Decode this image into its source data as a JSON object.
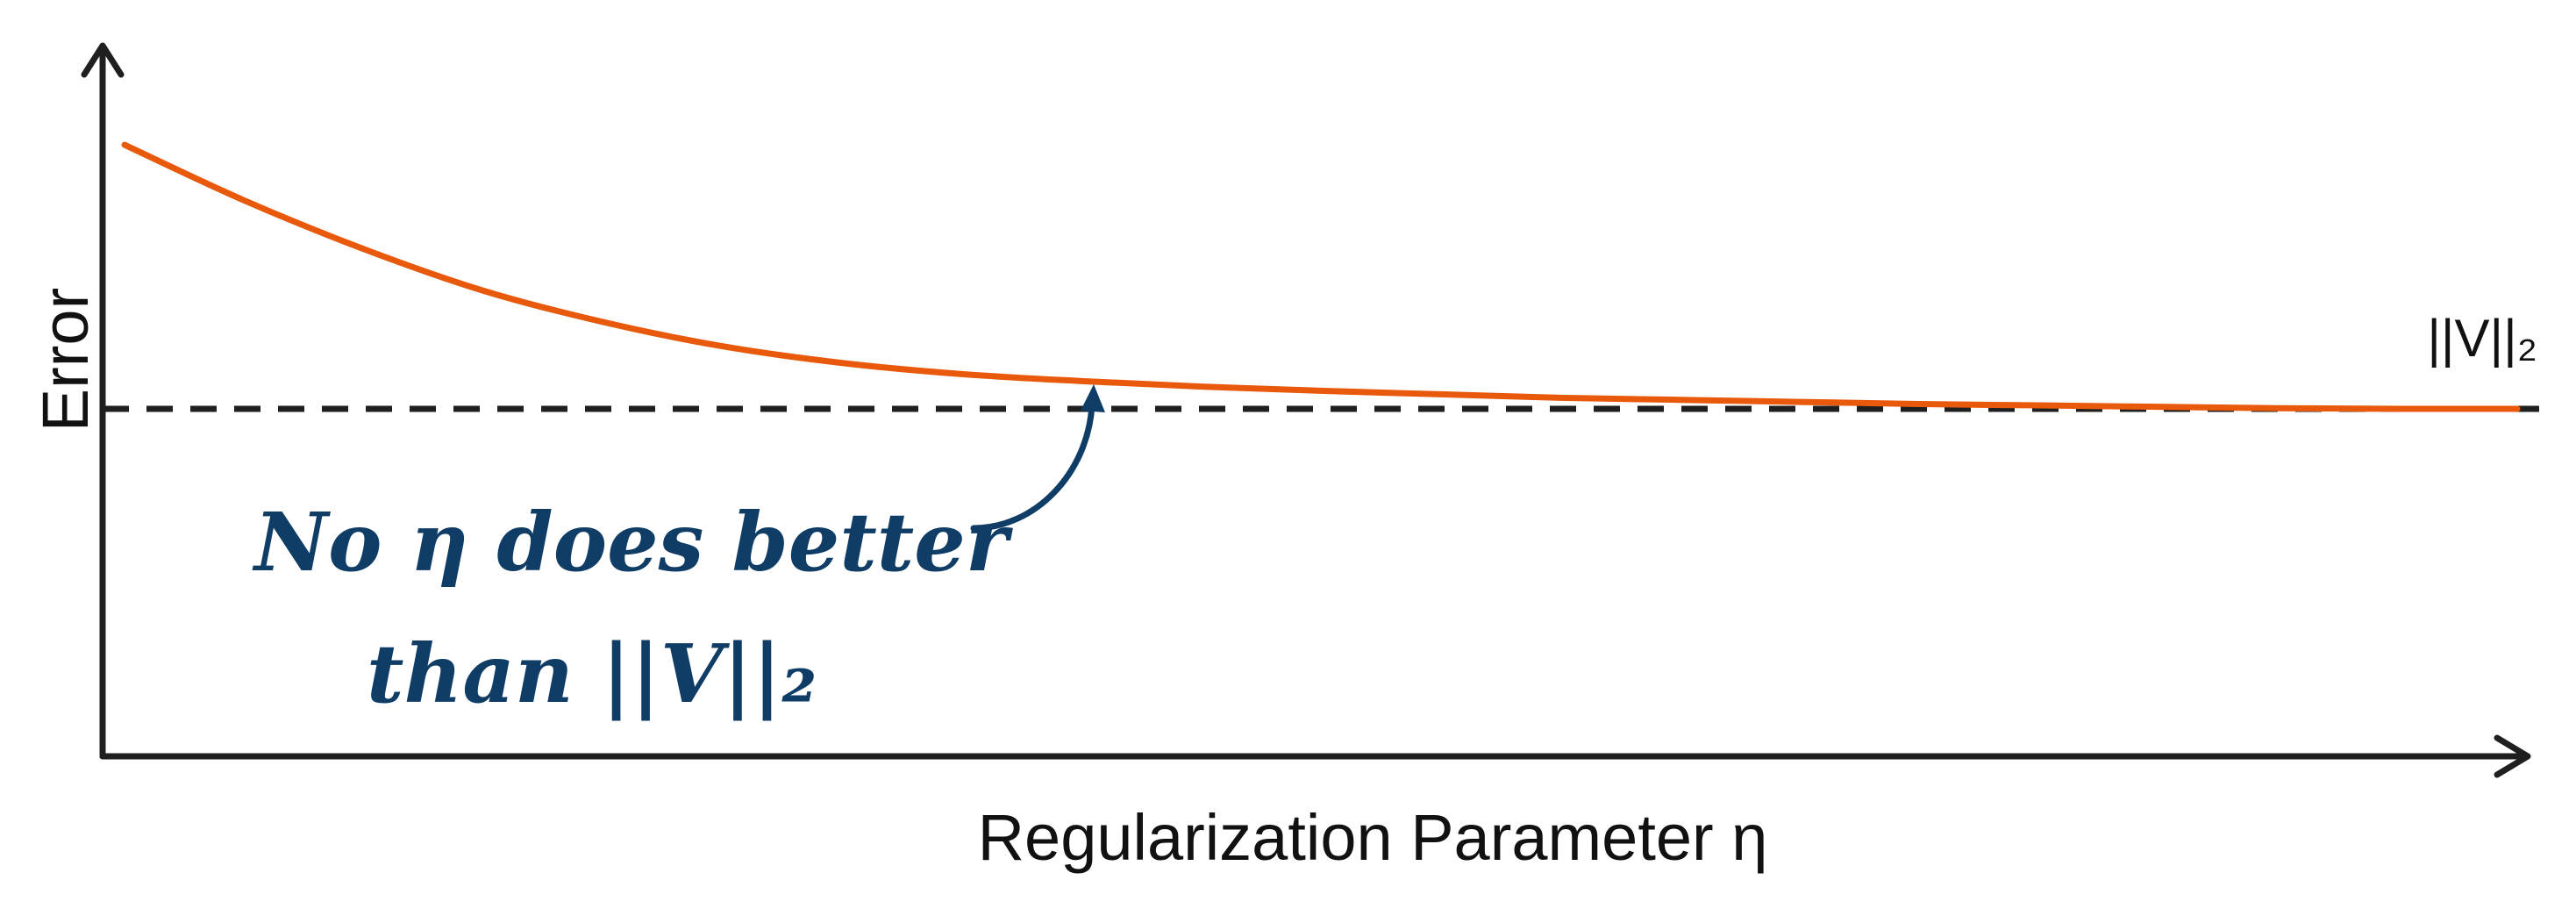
{
  "chart_data": {
    "type": "line",
    "title": "",
    "xlabel": "Regularization Parameter η",
    "ylabel": "Error",
    "grid": false,
    "legend": "none",
    "xlim": [
      0,
      1
    ],
    "ylim": [
      0,
      1
    ],
    "series": [
      {
        "x": [
          0.0,
          0.05,
          0.1,
          0.15,
          0.2,
          0.25,
          0.3,
          0.35,
          0.4,
          0.45,
          0.5,
          0.55,
          0.6,
          0.65,
          0.7,
          0.75,
          0.8,
          0.85,
          0.9,
          0.95,
          1.0
        ],
        "y": [
          0.88,
          0.8,
          0.73,
          0.67,
          0.625,
          0.59,
          0.566,
          0.55,
          0.54,
          0.532,
          0.526,
          0.521,
          0.516,
          0.513,
          0.51,
          0.507,
          0.505,
          0.503,
          0.501,
          0.5,
          0.5
        ],
        "color": "#e8590c"
      }
    ],
    "reference_line": {
      "y": 0.5,
      "label": "||V||₂",
      "style": "dashed",
      "color": "#1f1f1f"
    },
    "annotation": {
      "lines": [
        "No η does better",
        "than ||V||₂"
      ],
      "color": "#0f3d66"
    }
  }
}
